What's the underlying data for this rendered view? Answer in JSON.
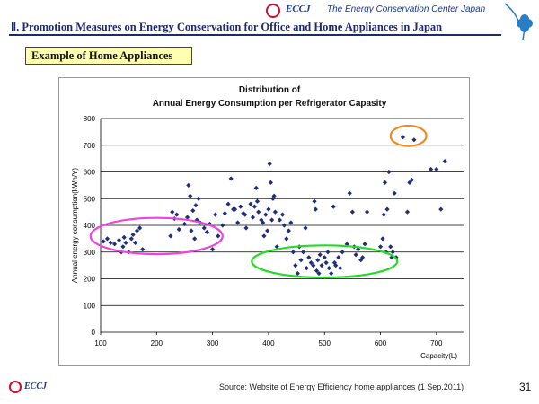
{
  "header": {
    "logo_text": "ECCJ",
    "org_name": "The Energy Conservation Center Japan",
    "slide_title": "Ⅱ. Promotion Measures on Energy Conservation for Office and Home Appliances in Japan"
  },
  "section_label": "Example of Home Appliances",
  "footer": {
    "logo_text": "ECCJ",
    "source": "Source: Website of Energy Efficiency home appliances (1 Sep.2011)",
    "page_number": "31"
  },
  "colors": {
    "marker": "#1f2f7a",
    "ellipse_magenta": "#ee44dd",
    "ellipse_green": "#22dd22",
    "ellipse_orange": "#f08a20",
    "title_blue": "#1d2a6b"
  },
  "chart_data": {
    "type": "scatter",
    "title_line1": "Distribution of",
    "title_line2": "Annual Energy Consumption per Refrigerator Capasity",
    "xlabel": "Capacity(L)",
    "ylabel": "Annual energy consumption(kWh/Y)",
    "xlim": [
      100,
      750
    ],
    "ylim": [
      0,
      800
    ],
    "xticks": [
      100,
      200,
      300,
      400,
      500,
      600,
      700
    ],
    "yticks": [
      0,
      100,
      200,
      300,
      400,
      500,
      600,
      700,
      800
    ],
    "grid": "horizontal",
    "points": [
      [
        105,
        340
      ],
      [
        112,
        350
      ],
      [
        118,
        335
      ],
      [
        125,
        330
      ],
      [
        133,
        345
      ],
      [
        137,
        300
      ],
      [
        140,
        320
      ],
      [
        142,
        355
      ],
      [
        145,
        335
      ],
      [
        150,
        300
      ],
      [
        155,
        350
      ],
      [
        158,
        365
      ],
      [
        162,
        335
      ],
      [
        165,
        380
      ],
      [
        170,
        390
      ],
      [
        175,
        310
      ],
      [
        225,
        360
      ],
      [
        228,
        450
      ],
      [
        232,
        425
      ],
      [
        236,
        440
      ],
      [
        240,
        385
      ],
      [
        250,
        405
      ],
      [
        255,
        430
      ],
      [
        257,
        550
      ],
      [
        260,
        510
      ],
      [
        262,
        380
      ],
      [
        265,
        455
      ],
      [
        268,
        350
      ],
      [
        270,
        475
      ],
      [
        272,
        420
      ],
      [
        275,
        500
      ],
      [
        278,
        410
      ],
      [
        285,
        390
      ],
      [
        290,
        375
      ],
      [
        295,
        405
      ],
      [
        300,
        310
      ],
      [
        305,
        440
      ],
      [
        310,
        360
      ],
      [
        318,
        400
      ],
      [
        322,
        445
      ],
      [
        328,
        480
      ],
      [
        333,
        575
      ],
      [
        337,
        460
      ],
      [
        340,
        460
      ],
      [
        345,
        410
      ],
      [
        350,
        470
      ],
      [
        355,
        445
      ],
      [
        358,
        440
      ],
      [
        360,
        390
      ],
      [
        368,
        480
      ],
      [
        372,
        430
      ],
      [
        375,
        470
      ],
      [
        378,
        540
      ],
      [
        380,
        490
      ],
      [
        382,
        450
      ],
      [
        387,
        420
      ],
      [
        390,
        410
      ],
      [
        392,
        360
      ],
      [
        395,
        440
      ],
      [
        398,
        380
      ],
      [
        400,
        460
      ],
      [
        402,
        630
      ],
      [
        404,
        560
      ],
      [
        406,
        420
      ],
      [
        408,
        500
      ],
      [
        410,
        510
      ],
      [
        412,
        450
      ],
      [
        415,
        320
      ],
      [
        420,
        420
      ],
      [
        425,
        440
      ],
      [
        428,
        400
      ],
      [
        432,
        350
      ],
      [
        436,
        380
      ],
      [
        440,
        410
      ],
      [
        444,
        300
      ],
      [
        448,
        250
      ],
      [
        452,
        220
      ],
      [
        455,
        320
      ],
      [
        458,
        270
      ],
      [
        462,
        300
      ],
      [
        466,
        390
      ],
      [
        468,
        240
      ],
      [
        472,
        280
      ],
      [
        476,
        260
      ],
      [
        480,
        250
      ],
      [
        482,
        490
      ],
      [
        484,
        460
      ],
      [
        486,
        230
      ],
      [
        488,
        270
      ],
      [
        490,
        220
      ],
      [
        492,
        290
      ],
      [
        495,
        250
      ],
      [
        500,
        280
      ],
      [
        503,
        260
      ],
      [
        506,
        300
      ],
      [
        508,
        240
      ],
      [
        512,
        220
      ],
      [
        516,
        470
      ],
      [
        518,
        260
      ],
      [
        520,
        250
      ],
      [
        525,
        280
      ],
      [
        528,
        240
      ],
      [
        532,
        300
      ],
      [
        540,
        330
      ],
      [
        545,
        520
      ],
      [
        550,
        450
      ],
      [
        553,
        320
      ],
      [
        556,
        290
      ],
      [
        560,
        310
      ],
      [
        565,
        270
      ],
      [
        568,
        280
      ],
      [
        572,
        330
      ],
      [
        576,
        450
      ],
      [
        600,
        320
      ],
      [
        604,
        350
      ],
      [
        606,
        440
      ],
      [
        608,
        560
      ],
      [
        610,
        300
      ],
      [
        612,
        460
      ],
      [
        615,
        600
      ],
      [
        618,
        320
      ],
      [
        620,
        280
      ],
      [
        622,
        300
      ],
      [
        625,
        520
      ],
      [
        628,
        280
      ],
      [
        640,
        730
      ],
      [
        648,
        450
      ],
      [
        652,
        560
      ],
      [
        656,
        570
      ],
      [
        660,
        720
      ],
      [
        690,
        610
      ],
      [
        700,
        610
      ],
      [
        708,
        460
      ],
      [
        715,
        640
      ]
    ],
    "annotations": [
      {
        "shape": "ellipse",
        "color": "magenta",
        "cx": 200,
        "cy": 360,
        "rx": 118,
        "ry": 68
      },
      {
        "shape": "ellipse",
        "color": "green",
        "cx": 500,
        "cy": 265,
        "rx": 130,
        "ry": 60
      },
      {
        "shape": "ellipse",
        "color": "orange",
        "cx": 650,
        "cy": 735,
        "rx": 32,
        "ry": 38
      }
    ]
  }
}
